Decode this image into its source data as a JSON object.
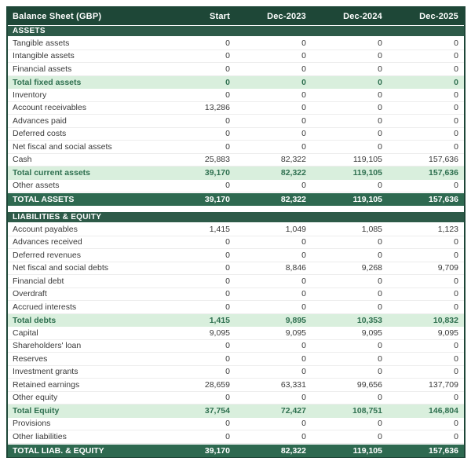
{
  "table": {
    "title": "Balance Sheet (GBP)",
    "columns": [
      "Start",
      "Dec-2023",
      "Dec-2024",
      "Dec-2025"
    ],
    "rows": [
      {
        "type": "section",
        "label": "ASSETS"
      },
      {
        "type": "item",
        "label": "Tangible assets",
        "values": [
          "0",
          "0",
          "0",
          "0"
        ]
      },
      {
        "type": "item",
        "label": "Intangible assets",
        "values": [
          "0",
          "0",
          "0",
          "0"
        ]
      },
      {
        "type": "item",
        "label": "Financial assets",
        "values": [
          "0",
          "0",
          "0",
          "0"
        ]
      },
      {
        "type": "subtotal",
        "label": "Total fixed assets",
        "values": [
          "0",
          "0",
          "0",
          "0"
        ]
      },
      {
        "type": "item",
        "label": "Inventory",
        "values": [
          "0",
          "0",
          "0",
          "0"
        ]
      },
      {
        "type": "item",
        "label": "Account receivables",
        "values": [
          "13,286",
          "0",
          "0",
          "0"
        ]
      },
      {
        "type": "item",
        "label": "Advances paid",
        "values": [
          "0",
          "0",
          "0",
          "0"
        ]
      },
      {
        "type": "item",
        "label": "Deferred costs",
        "values": [
          "0",
          "0",
          "0",
          "0"
        ]
      },
      {
        "type": "item",
        "label": "Net fiscal and social assets",
        "values": [
          "0",
          "0",
          "0",
          "0"
        ]
      },
      {
        "type": "item",
        "label": "Cash",
        "values": [
          "25,883",
          "82,322",
          "119,105",
          "157,636"
        ]
      },
      {
        "type": "subtotal",
        "label": "Total current assets",
        "values": [
          "39,170",
          "82,322",
          "119,105",
          "157,636"
        ]
      },
      {
        "type": "item",
        "label": "Other assets",
        "values": [
          "0",
          "0",
          "0",
          "0"
        ]
      },
      {
        "type": "grandtotal",
        "label": "TOTAL ASSETS",
        "values": [
          "39,170",
          "82,322",
          "119,105",
          "157,636"
        ]
      },
      {
        "type": "gap",
        "label": ""
      },
      {
        "type": "section",
        "label": "LIABILITIES & EQUITY"
      },
      {
        "type": "item",
        "label": "Account payables",
        "values": [
          "1,415",
          "1,049",
          "1,085",
          "1,123"
        ]
      },
      {
        "type": "item",
        "label": "Advances received",
        "values": [
          "0",
          "0",
          "0",
          "0"
        ]
      },
      {
        "type": "item",
        "label": "Deferred revenues",
        "values": [
          "0",
          "0",
          "0",
          "0"
        ]
      },
      {
        "type": "item",
        "label": "Net fiscal and social debts",
        "values": [
          "0",
          "8,846",
          "9,268",
          "9,709"
        ]
      },
      {
        "type": "item",
        "label": "Financial debt",
        "values": [
          "0",
          "0",
          "0",
          "0"
        ]
      },
      {
        "type": "item",
        "label": "Overdraft",
        "values": [
          "0",
          "0",
          "0",
          "0"
        ]
      },
      {
        "type": "item",
        "label": "Accrued interests",
        "values": [
          "0",
          "0",
          "0",
          "0"
        ]
      },
      {
        "type": "subtotal",
        "label": "Total debts",
        "values": [
          "1,415",
          "9,895",
          "10,353",
          "10,832"
        ]
      },
      {
        "type": "item",
        "label": "Capital",
        "values": [
          "9,095",
          "9,095",
          "9,095",
          "9,095"
        ]
      },
      {
        "type": "item",
        "label": "Shareholders' loan",
        "values": [
          "0",
          "0",
          "0",
          "0"
        ]
      },
      {
        "type": "item",
        "label": "Reserves",
        "values": [
          "0",
          "0",
          "0",
          "0"
        ]
      },
      {
        "type": "item",
        "label": "Investment grants",
        "values": [
          "0",
          "0",
          "0",
          "0"
        ]
      },
      {
        "type": "item",
        "label": "Retained earnings",
        "values": [
          "28,659",
          "63,331",
          "99,656",
          "137,709"
        ]
      },
      {
        "type": "item",
        "label": "Other equity",
        "values": [
          "0",
          "0",
          "0",
          "0"
        ]
      },
      {
        "type": "subtotal",
        "label": "Total Equity",
        "values": [
          "37,754",
          "72,427",
          "108,751",
          "146,804"
        ]
      },
      {
        "type": "item",
        "label": "Provisions",
        "values": [
          "0",
          "0",
          "0",
          "0"
        ]
      },
      {
        "type": "item",
        "label": "Other liabilities",
        "values": [
          "0",
          "0",
          "0",
          "0"
        ]
      },
      {
        "type": "grandtotal",
        "label": "TOTAL LIAB. & EQUITY",
        "values": [
          "39,170",
          "82,322",
          "119,105",
          "157,636"
        ]
      }
    ]
  },
  "colors": {
    "header_bg": "#1e4737",
    "section_bg": "#2d5a48",
    "grandtotal_bg": "#2e6950",
    "subtotal_bg": "#d9efdd",
    "subtotal_text": "#2f7050",
    "item_text": "#3a3a3a",
    "outer_border": "#1d4637",
    "row_divider": "#ededed"
  }
}
